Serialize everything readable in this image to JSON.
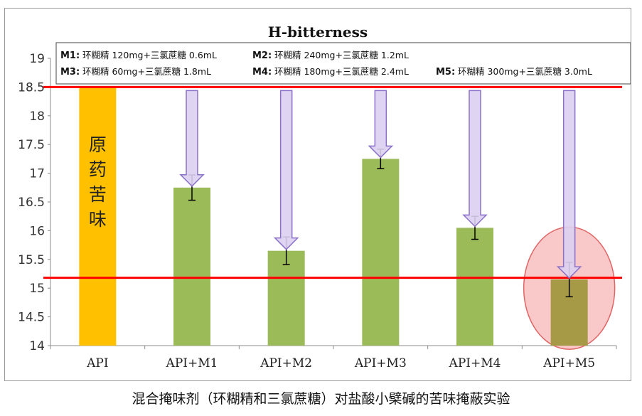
{
  "caption": "混合掩味剂（环糊精和三氯蔗糖）对盐酸小檗碱的苦味掩蔽实验",
  "chart_data": {
    "type": "bar",
    "title": "H-bitterness",
    "categories": [
      "API",
      "API+M1",
      "API+M2",
      "API+M3",
      "API+M4",
      "API+M5"
    ],
    "values": [
      18.5,
      16.75,
      15.65,
      17.25,
      16.05,
      15.15
    ],
    "errors": [
      null,
      0.22,
      0.24,
      0.17,
      0.2,
      0.3
    ],
    "ylim": [
      14,
      19
    ],
    "yticks": [
      "14",
      "14.5",
      "15",
      "15.5",
      "16",
      "16.5",
      "17",
      "17.5",
      "18",
      "18.5",
      "19"
    ],
    "reference_lines": [
      18.5,
      15.18
    ],
    "highlight_category": "API+M5",
    "api_bar_label": "原药苦味",
    "legend": [
      {
        "key": "M1:",
        "text": "环糊精 120mg+三氯蔗糖 0.6mL"
      },
      {
        "key": "M2:",
        "text": "环糊精 240mg+三氯蔗糖 1.2mL"
      },
      {
        "key": "M3:",
        "text": "环糊精  60mg+三氯蔗糖 1.8mL"
      },
      {
        "key": "M4:",
        "text": "环糊精 180mg+三氯蔗糖 2.4mL"
      },
      {
        "key": "M5:",
        "text": "环糊精 300mg+三氯蔗糖 3.0mL"
      }
    ],
    "grid": false,
    "colors": {
      "api_bar": "#ffc000",
      "bar": "#9bbb59",
      "highlight_bar": "#a69a46",
      "reference_line": "#ff0000",
      "arrow_fill": "#dcd0f2",
      "arrow_stroke": "#8a70c6",
      "highlight_circle": "#f7b5b5"
    }
  }
}
